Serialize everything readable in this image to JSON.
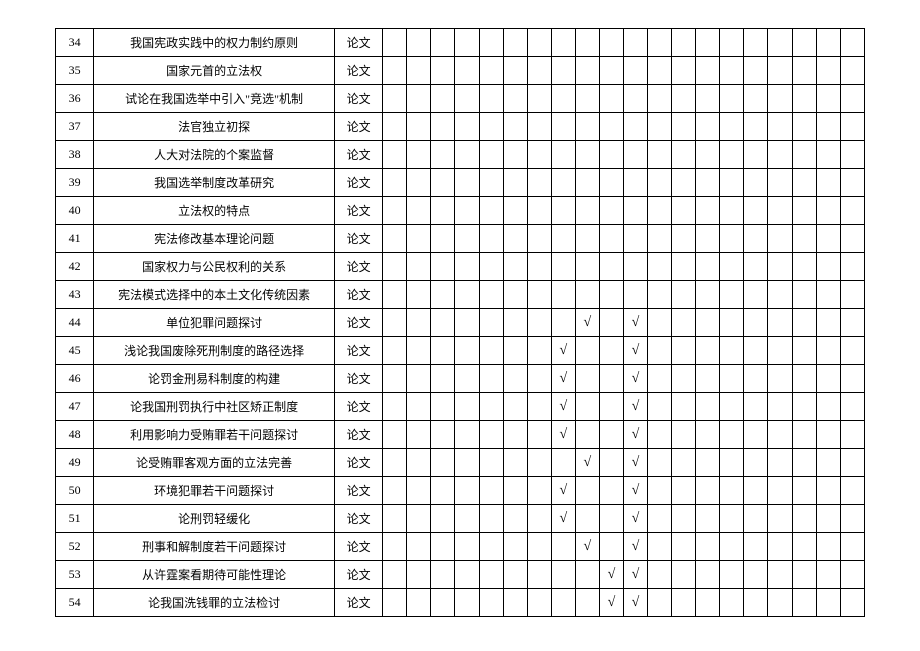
{
  "table": {
    "type": "table",
    "check_symbol": "√",
    "columns": {
      "num_width": 38,
      "title_width": 240,
      "type_width": 48,
      "small_width": 24,
      "small_count": 20
    },
    "rows": [
      {
        "num": "34",
        "title": "我国宪政实践中的权力制约原则",
        "type": "论文",
        "checks": []
      },
      {
        "num": "35",
        "title": "国家元首的立法权",
        "type": "论文",
        "checks": []
      },
      {
        "num": "36",
        "title": "试论在我国选举中引入\"竞选\"机制",
        "type": "论文",
        "checks": []
      },
      {
        "num": "37",
        "title": "法官独立初探",
        "type": "论文",
        "checks": []
      },
      {
        "num": "38",
        "title": "人大对法院的个案监督",
        "type": "论文",
        "checks": []
      },
      {
        "num": "39",
        "title": "我国选举制度改革研究",
        "type": "论文",
        "checks": []
      },
      {
        "num": "40",
        "title": "立法权的特点",
        "type": "论文",
        "checks": []
      },
      {
        "num": "41",
        "title": "宪法修改基本理论问题",
        "type": "论文",
        "checks": []
      },
      {
        "num": "42",
        "title": "国家权力与公民权利的关系",
        "type": "论文",
        "checks": []
      },
      {
        "num": "43",
        "title": "宪法模式选择中的本土文化传统因素",
        "type": "论文",
        "checks": []
      },
      {
        "num": "44",
        "title": "单位犯罪问题探讨",
        "type": "论文",
        "checks": [
          8,
          10
        ]
      },
      {
        "num": "45",
        "title": "浅论我国废除死刑制度的路径选择",
        "type": "论文",
        "checks": [
          7,
          10
        ]
      },
      {
        "num": "46",
        "title": "论罚金刑易科制度的构建",
        "type": "论文",
        "checks": [
          7,
          10
        ]
      },
      {
        "num": "47",
        "title": "论我国刑罚执行中社区矫正制度",
        "type": "论文",
        "checks": [
          7,
          10
        ]
      },
      {
        "num": "48",
        "title": "利用影响力受贿罪若干问题探讨",
        "type": "论文",
        "checks": [
          7,
          10
        ]
      },
      {
        "num": "49",
        "title": "论受贿罪客观方面的立法完善",
        "type": "论文",
        "checks": [
          8,
          10
        ]
      },
      {
        "num": "50",
        "title": "环境犯罪若干问题探讨",
        "type": "论文",
        "checks": [
          7,
          10
        ]
      },
      {
        "num": "51",
        "title": "论刑罚轻缓化",
        "type": "论文",
        "checks": [
          7,
          10
        ]
      },
      {
        "num": "52",
        "title": "刑事和解制度若干问题探讨",
        "type": "论文",
        "checks": [
          8,
          10
        ]
      },
      {
        "num": "53",
        "title": "从许霆案看期待可能性理论",
        "type": "论文",
        "checks": [
          9,
          10
        ]
      },
      {
        "num": "54",
        "title": "论我国洗钱罪的立法检讨",
        "type": "论文",
        "checks": [
          9,
          10
        ]
      }
    ]
  }
}
